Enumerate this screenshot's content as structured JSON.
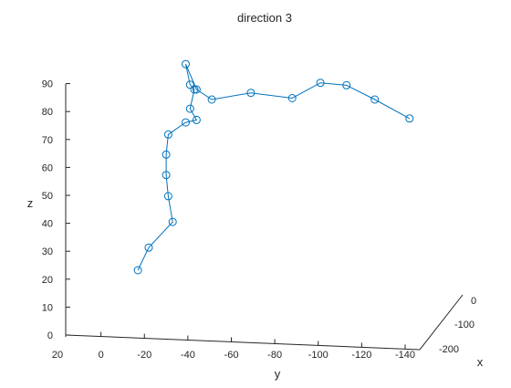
{
  "chart_data": {
    "type": "line",
    "title": "direction 3",
    "xlabel": "x",
    "ylabel": "y",
    "zlabel": "z",
    "ylim": [
      20,
      -140
    ],
    "zlim": [
      0,
      90
    ],
    "xlim": [
      0,
      -200
    ],
    "y_ticks": [
      "20",
      "0",
      "-20",
      "-40",
      "-60",
      "-80",
      "-100",
      "-120",
      "-140"
    ],
    "z_ticks": [
      "0",
      "10",
      "20",
      "30",
      "40",
      "50",
      "60",
      "70",
      "80",
      "90"
    ],
    "x_ticks": [
      "0",
      "-100",
      "-200"
    ],
    "grid": false,
    "marker": "circle",
    "line_color": "#0072BD",
    "points": [
      {
        "y": -17,
        "z": 23.2
      },
      {
        "y": -22,
        "z": 31.3
      },
      {
        "y": -33,
        "z": 40.5
      },
      {
        "y": -31,
        "z": 49.7
      },
      {
        "y": -30,
        "z": 57.3
      },
      {
        "y": -30,
        "z": 64.6
      },
      {
        "y": -31,
        "z": 71.8
      },
      {
        "y": -39,
        "z": 76.1
      },
      {
        "y": -44,
        "z": 77.0
      },
      {
        "y": -41,
        "z": 81.0
      },
      {
        "y": -43,
        "z": 87.9
      },
      {
        "y": -41,
        "z": 89.6
      },
      {
        "y": -39,
        "z": 97.0
      },
      {
        "y": -44,
        "z": 87.9
      },
      {
        "y": -51,
        "z": 84.3
      },
      {
        "y": -69,
        "z": 86.7
      },
      {
        "y": -88,
        "z": 84.8
      },
      {
        "y": -101,
        "z": 90.3
      },
      {
        "y": -113,
        "z": 89.4
      },
      {
        "y": -126,
        "z": 84.3
      },
      {
        "y": -142,
        "z": 77.5
      }
    ]
  }
}
